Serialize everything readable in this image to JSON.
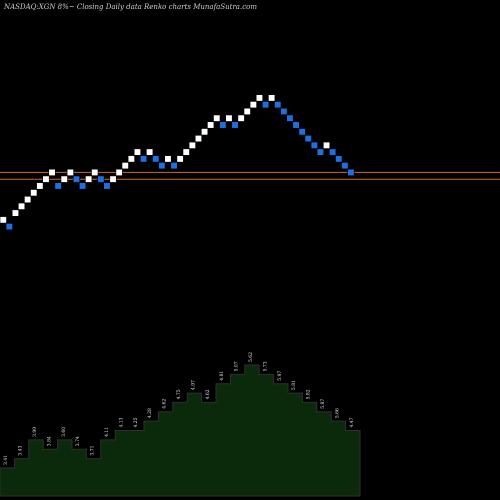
{
  "chart_data": {
    "type": "renko",
    "title": "NASDAQ:XGN  8%~  Closing Daily data  Renko  charts MunafaSutra.com",
    "colors": {
      "background": "#000000",
      "up_brick": "#ffffff",
      "down_brick": "#1e6fe0",
      "reference_line": "#d2691e",
      "volume_area": "#0b2a0b",
      "volume_outline": "#2f2f2f"
    },
    "reference_lines": [
      4.05,
      3.95
    ],
    "y_range": [
      3.2,
      6.3
    ],
    "bricks": [
      {
        "dir": "up",
        "level": 3.35
      },
      {
        "dir": "down",
        "level": 3.25
      },
      {
        "dir": "up",
        "level": 3.45
      },
      {
        "dir": "up",
        "level": 3.55
      },
      {
        "dir": "up",
        "level": 3.65
      },
      {
        "dir": "up",
        "level": 3.75
      },
      {
        "dir": "up",
        "level": 3.85
      },
      {
        "dir": "up",
        "level": 3.95
      },
      {
        "dir": "up",
        "level": 4.05
      },
      {
        "dir": "down",
        "level": 3.85
      },
      {
        "dir": "up",
        "level": 3.95
      },
      {
        "dir": "up",
        "level": 4.05
      },
      {
        "dir": "down",
        "level": 3.95
      },
      {
        "dir": "down",
        "level": 3.85
      },
      {
        "dir": "up",
        "level": 3.95
      },
      {
        "dir": "up",
        "level": 4.05
      },
      {
        "dir": "down",
        "level": 3.95
      },
      {
        "dir": "down",
        "level": 3.85
      },
      {
        "dir": "up",
        "level": 3.95
      },
      {
        "dir": "up",
        "level": 4.05
      },
      {
        "dir": "up",
        "level": 4.15
      },
      {
        "dir": "up",
        "level": 4.25
      },
      {
        "dir": "up",
        "level": 4.35
      },
      {
        "dir": "down",
        "level": 4.25
      },
      {
        "dir": "up",
        "level": 4.35
      },
      {
        "dir": "down",
        "level": 4.25
      },
      {
        "dir": "down",
        "level": 4.15
      },
      {
        "dir": "up",
        "level": 4.25
      },
      {
        "dir": "down",
        "level": 4.15
      },
      {
        "dir": "up",
        "level": 4.25
      },
      {
        "dir": "up",
        "level": 4.35
      },
      {
        "dir": "up",
        "level": 4.45
      },
      {
        "dir": "up",
        "level": 4.55
      },
      {
        "dir": "up",
        "level": 4.65
      },
      {
        "dir": "up",
        "level": 4.75
      },
      {
        "dir": "up",
        "level": 4.85
      },
      {
        "dir": "down",
        "level": 4.75
      },
      {
        "dir": "up",
        "level": 4.85
      },
      {
        "dir": "down",
        "level": 4.75
      },
      {
        "dir": "up",
        "level": 4.85
      },
      {
        "dir": "up",
        "level": 4.95
      },
      {
        "dir": "up",
        "level": 5.05
      },
      {
        "dir": "up",
        "level": 5.15
      },
      {
        "dir": "down",
        "level": 5.05
      },
      {
        "dir": "up",
        "level": 5.15
      },
      {
        "dir": "down",
        "level": 5.05
      },
      {
        "dir": "down",
        "level": 4.95
      },
      {
        "dir": "down",
        "level": 4.85
      },
      {
        "dir": "down",
        "level": 4.75
      },
      {
        "dir": "down",
        "level": 4.65
      },
      {
        "dir": "down",
        "level": 4.55
      },
      {
        "dir": "down",
        "level": 4.45
      },
      {
        "dir": "down",
        "level": 4.35
      },
      {
        "dir": "up",
        "level": 4.45
      },
      {
        "dir": "down",
        "level": 4.35
      },
      {
        "dir": "down",
        "level": 4.25
      },
      {
        "dir": "down",
        "level": 4.15
      },
      {
        "dir": "down",
        "level": 4.05
      }
    ],
    "volume_labels": [
      "3.41",
      "3.43",
      "3.99",
      "3.84",
      "3.60",
      "3.74",
      "3.71",
      "4.11",
      "4.13",
      "4.25",
      "4.28",
      "4.62",
      "4.75",
      "4.97",
      "4.62",
      "4.81",
      "5.07",
      "5.62",
      "5.73",
      "5.97",
      "5.81",
      "5.82",
      "5.87",
      "5.66",
      "4.47"
    ],
    "volume_values": [
      3,
      4,
      6,
      5,
      6,
      5,
      4,
      6,
      7,
      7,
      8,
      9,
      10,
      11,
      10,
      12,
      13,
      14,
      13,
      12,
      11,
      10,
      9,
      8,
      7
    ]
  }
}
